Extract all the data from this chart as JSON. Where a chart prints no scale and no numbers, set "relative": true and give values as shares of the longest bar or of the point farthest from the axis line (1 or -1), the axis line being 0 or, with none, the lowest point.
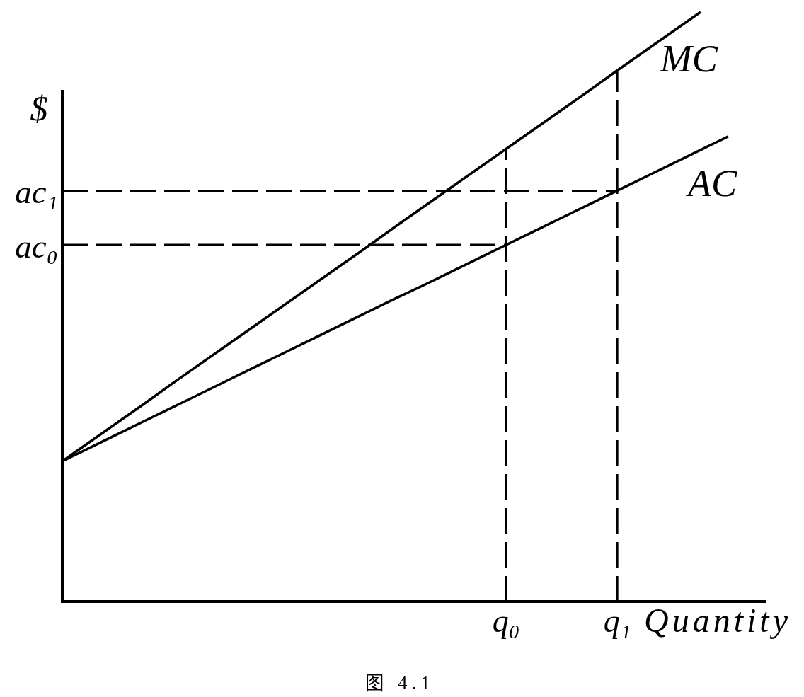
{
  "chart_data": {
    "type": "line",
    "relative": true,
    "xlabel": "Quantity",
    "ylabel": "$",
    "categories": [
      null,
      null,
      null,
      null,
      null,
      null,
      null,
      null,
      null,
      null,
      null,
      null,
      null,
      null,
      null,
      null,
      "q₀",
      null,
      null,
      null,
      "q₁",
      null,
      null,
      null,
      null
    ],
    "series": [
      {
        "name": "MC",
        "color": "#000000",
        "values": [
          0.238,
          0.271,
          0.304,
          0.337,
          0.371,
          0.404,
          0.437,
          0.47,
          0.503,
          0.536,
          0.569,
          0.602,
          0.636,
          0.669,
          0.702,
          0.735,
          0.768,
          0.801,
          0.834,
          0.867,
          0.901,
          0.934,
          0.967,
          1,
          null
        ]
      },
      {
        "name": "AC",
        "color": "#000000",
        "values": [
          0.238,
          0.261,
          0.284,
          0.307,
          0.33,
          0.353,
          0.376,
          0.399,
          0.422,
          0.445,
          0.468,
          0.491,
          0.514,
          0.536,
          0.559,
          0.582,
          0.605,
          0.628,
          0.651,
          0.674,
          0.697,
          0.72,
          0.743,
          0.766,
          0.789
        ]
      },
      {
        "name": "ac₁",
        "color": "#000000",
        "line_style": "dashed",
        "values": [
          0.697,
          0.697,
          0.697,
          0.697,
          0.697,
          0.697,
          0.697,
          0.697,
          0.697,
          0.697,
          0.697,
          0.697,
          0.697,
          0.697,
          0.697,
          0.697,
          0.697,
          0.697,
          0.697,
          0.697,
          0.697,
          null,
          null,
          null,
          null
        ]
      },
      {
        "name": "ac₀",
        "color": "#000000",
        "line_style": "dashed",
        "values": [
          0.605,
          0.605,
          0.605,
          0.605,
          0.605,
          0.605,
          0.605,
          0.605,
          0.605,
          0.605,
          0.605,
          0.605,
          0.605,
          0.605,
          0.605,
          0.605,
          0.605,
          null,
          null,
          null,
          null,
          null,
          null,
          null,
          null
        ]
      },
      {
        "color": "#000000",
        "line_style": "dashed",
        "x": [
          "q₀",
          "q₀"
        ],
        "values": [
          0,
          0.768
        ]
      },
      {
        "color": "#000000",
        "line_style": "dashed",
        "x": [
          "q₁",
          "q₁"
        ],
        "values": [
          0,
          0.901
        ]
      }
    ],
    "annotations": [
      "图 4.1"
    ]
  }
}
